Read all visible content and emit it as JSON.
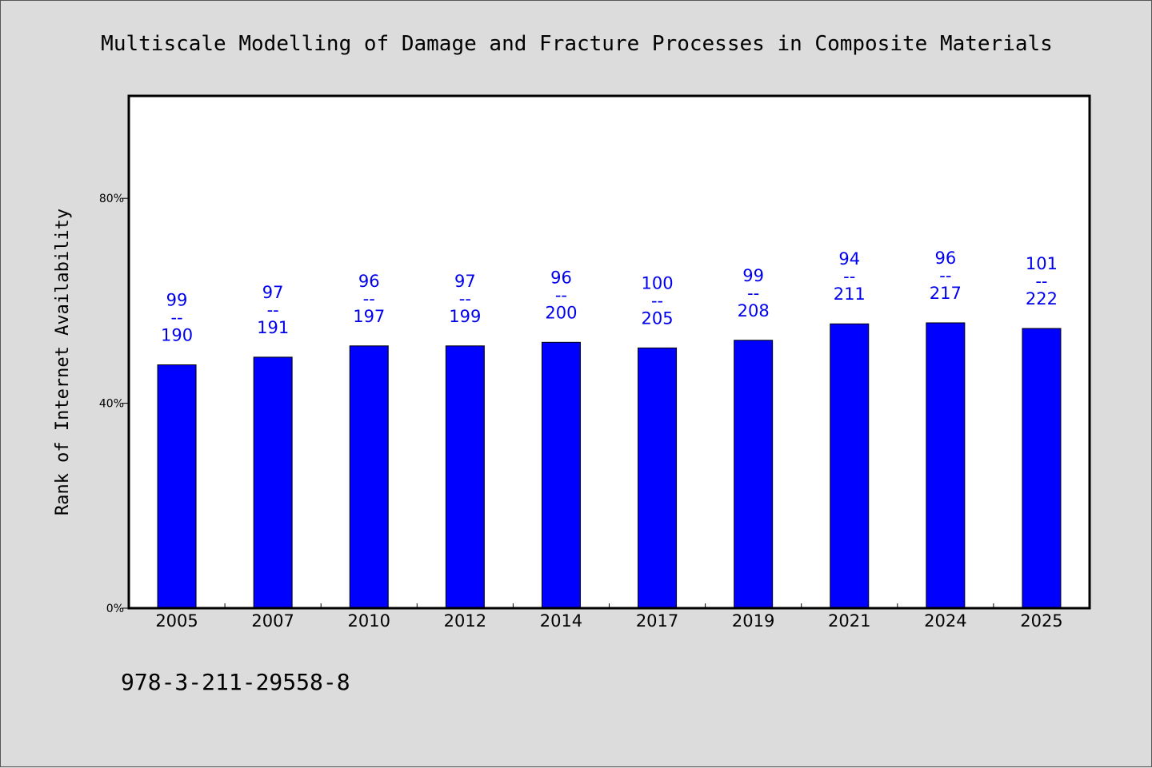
{
  "chart_data": {
    "type": "bar",
    "title": "Multiscale Modelling of Damage and Fracture Processes in Composite Materials",
    "xlabel": "",
    "ylabel": "Rank of Internet Availability",
    "ylim": [
      0,
      100
    ],
    "yticks": [
      {
        "value": 0,
        "label": "0%"
      },
      {
        "value": 40,
        "label": "40%"
      },
      {
        "value": 80,
        "label": "80%"
      }
    ],
    "grid": false,
    "categories": [
      "2005",
      "2007",
      "2010",
      "2012",
      "2014",
      "2017",
      "2019",
      "2021",
      "2024",
      "2025"
    ],
    "values": [
      47.5,
      49,
      51.2,
      51.2,
      51.9,
      50.8,
      52.3,
      55.5,
      55.7,
      54.6
    ],
    "data_labels": [
      {
        "top": "99",
        "sep": "--",
        "bottom": "190"
      },
      {
        "top": "97",
        "sep": "--",
        "bottom": "191"
      },
      {
        "top": "96",
        "sep": "--",
        "bottom": "197"
      },
      {
        "top": "97",
        "sep": "--",
        "bottom": "199"
      },
      {
        "top": "96",
        "sep": "--",
        "bottom": "200"
      },
      {
        "top": "100",
        "sep": "--",
        "bottom": "205"
      },
      {
        "top": "99",
        "sep": "--",
        "bottom": "208"
      },
      {
        "top": "94",
        "sep": "--",
        "bottom": "211"
      },
      {
        "top": "96",
        "sep": "--",
        "bottom": "217"
      },
      {
        "top": "101",
        "sep": "--",
        "bottom": "222"
      }
    ],
    "bar_color": "#0000ff",
    "label_color": "#0000ee",
    "plot_background": "#ffffff",
    "page_background": "#dcdcdc"
  },
  "footer": {
    "isbn": "978-3-211-29558-8"
  }
}
